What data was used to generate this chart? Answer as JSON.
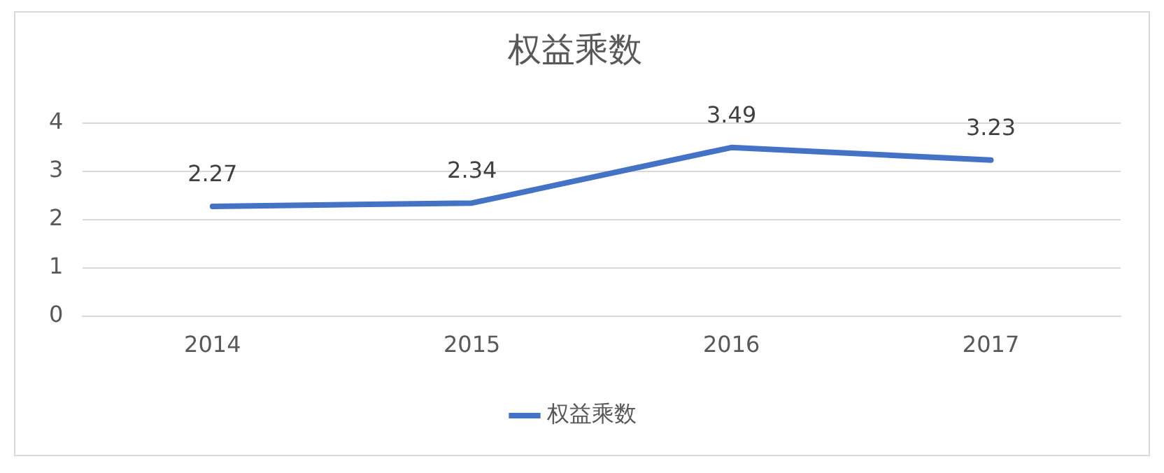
{
  "chart_data": {
    "type": "line",
    "title": "权益乘数",
    "categories": [
      "2014",
      "2015",
      "2016",
      "2017"
    ],
    "series": [
      {
        "name": "权益乘数",
        "color": "#4472c4",
        "values": [
          2.27,
          2.34,
          3.49,
          3.23
        ]
      }
    ],
    "ylim": [
      0,
      4
    ],
    "yticks": [
      0,
      1,
      2,
      3,
      4
    ],
    "grid": "y",
    "legend": "bottom",
    "marker": "none",
    "data_labels": true
  }
}
